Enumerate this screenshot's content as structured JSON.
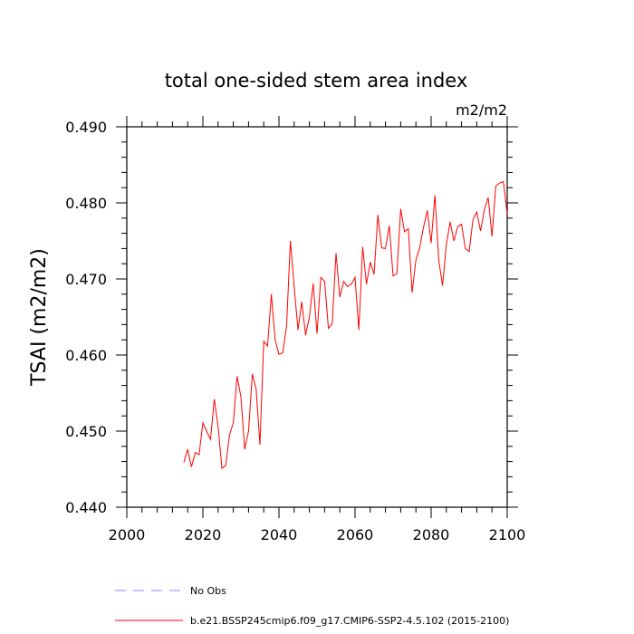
{
  "chart_data": {
    "type": "line",
    "title": "total one-sided stem area index",
    "units": "m2/m2",
    "ylabel": "TSAI  (m2/m2)",
    "xlabel": "",
    "xlim": [
      2000,
      2100
    ],
    "ylim": [
      0.44,
      0.49
    ],
    "xticks": [
      2000,
      2020,
      2040,
      2060,
      2080,
      2100
    ],
    "yticks": [
      0.44,
      0.45,
      0.46,
      0.47,
      0.48,
      0.49
    ],
    "ytick_labels": [
      "0.440",
      "0.450",
      "0.460",
      "0.470",
      "0.480",
      "0.490"
    ],
    "grid": false,
    "series": [
      {
        "name": "b.e21.BSSP245cmip6.f09_g17.CMIP6-SSP2-4.5.102 (2015-2100)",
        "color": "#ff0000",
        "style": "solid",
        "x_start": 2015,
        "x_step": 1,
        "values": [
          0.4459,
          0.4476,
          0.4453,
          0.4472,
          0.4469,
          0.4511,
          0.45,
          0.4489,
          0.4542,
          0.4506,
          0.4451,
          0.4455,
          0.4495,
          0.4511,
          0.4572,
          0.4545,
          0.4476,
          0.45,
          0.4575,
          0.4555,
          0.4482,
          0.4618,
          0.4612,
          0.468,
          0.462,
          0.4601,
          0.4603,
          0.4638,
          0.475,
          0.469,
          0.4633,
          0.467,
          0.4626,
          0.465,
          0.4694,
          0.4628,
          0.4702,
          0.4697,
          0.4635,
          0.4641,
          0.4734,
          0.4676,
          0.4697,
          0.469,
          0.4693,
          0.4702,
          0.4633,
          0.4742,
          0.4693,
          0.4722,
          0.4706,
          0.4784,
          0.4741,
          0.474,
          0.477,
          0.4704,
          0.4707,
          0.4792,
          0.4762,
          0.4766,
          0.4682,
          0.4725,
          0.4741,
          0.4768,
          0.479,
          0.4747,
          0.481,
          0.4725,
          0.4691,
          0.4745,
          0.4775,
          0.475,
          0.4769,
          0.4772,
          0.474,
          0.4736,
          0.4778,
          0.4788,
          0.4763,
          0.4791,
          0.4807,
          0.4756,
          0.4822,
          0.4826,
          0.4828,
          0.4785
        ]
      }
    ],
    "legend": [
      {
        "label": "No Obs",
        "color": "#8a8aff",
        "style": "dashed"
      },
      {
        "label": "b.e21.BSSP245cmip6.f09_g17.CMIP6-SSP2-4.5.102 (2015-2100)",
        "color": "#ff0000",
        "style": "solid"
      }
    ],
    "legend_position": "bottom"
  }
}
